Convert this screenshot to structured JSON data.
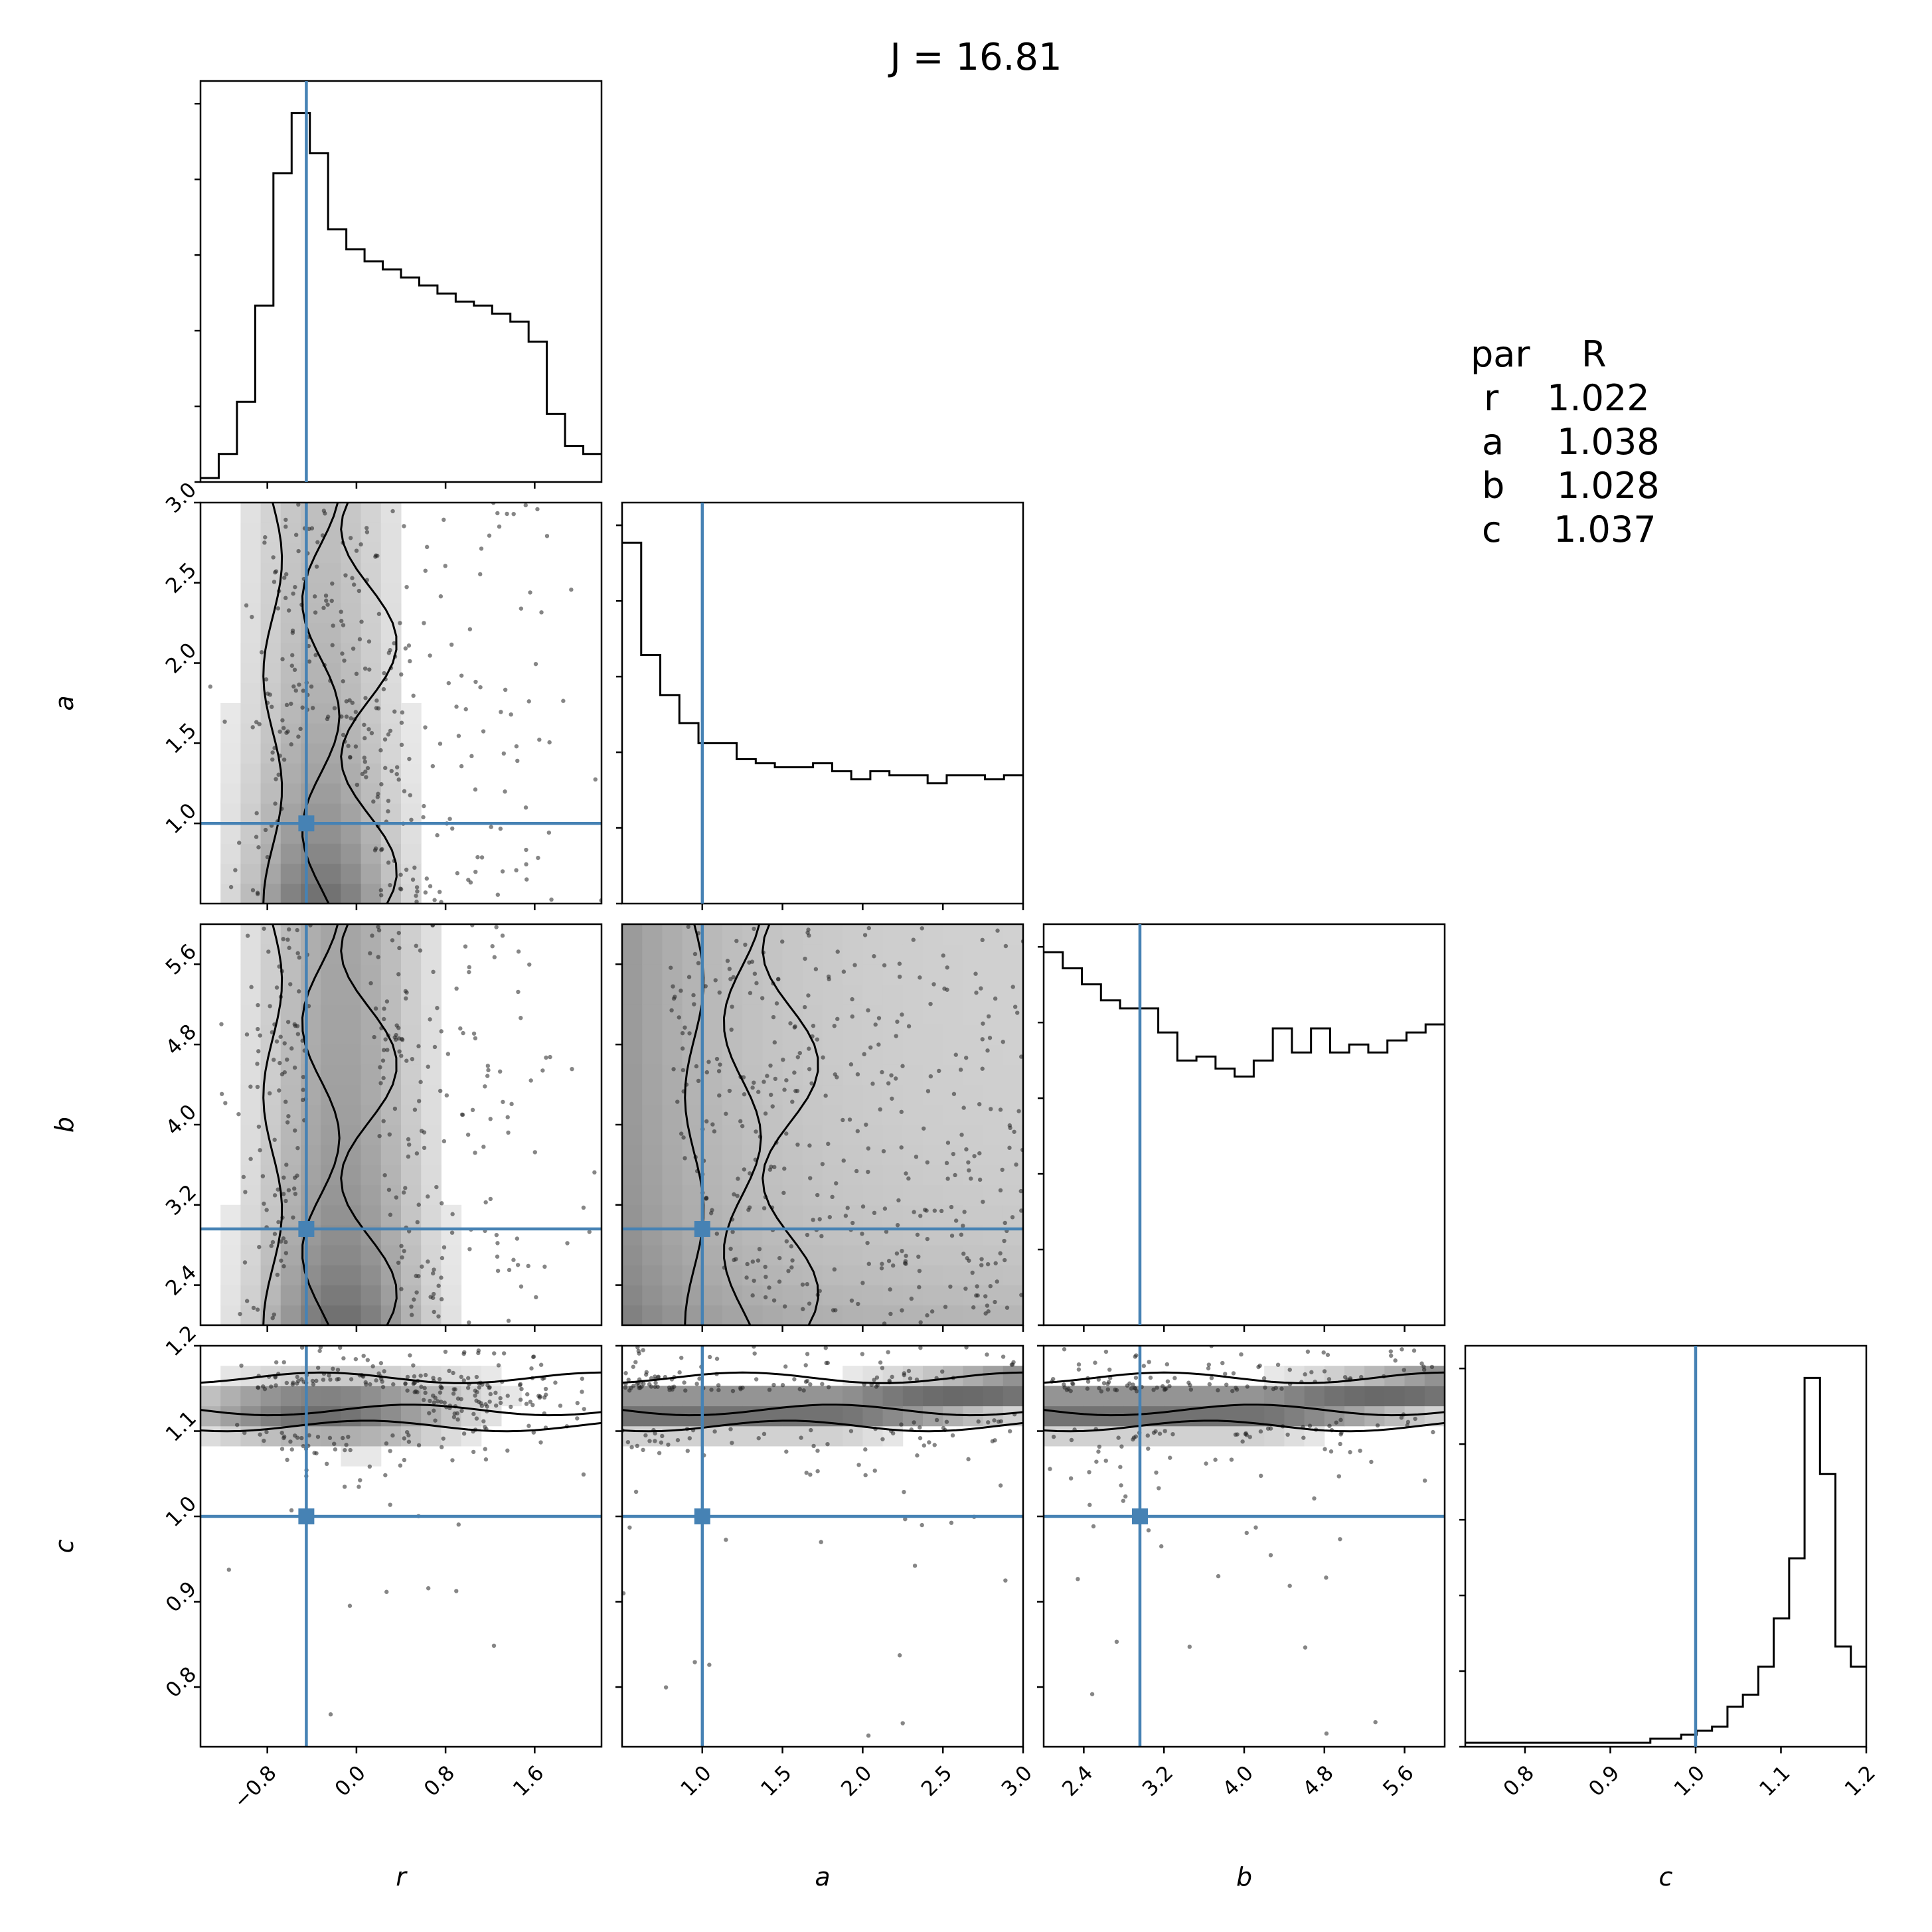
{
  "chart_data": {
    "type": "corner",
    "title": "J = 16.81",
    "parameters": [
      {
        "name": "r",
        "label": "r",
        "range": [
          -1.4,
          2.2
        ],
        "truth": -0.45,
        "ticks": [
          -0.8,
          0.0,
          0.8,
          1.6
        ],
        "tick_labels": [
          "−0.8",
          "0.0",
          "0.8",
          "1.6"
        ]
      },
      {
        "name": "a",
        "label": "a",
        "range": [
          0.5,
          3.0
        ],
        "truth": 1.0,
        "ticks": [
          1.0,
          1.5,
          2.0,
          2.5,
          3.0
        ],
        "tick_labels": [
          "1.0",
          "1.5",
          "2.0",
          "2.5",
          "3.0"
        ]
      },
      {
        "name": "b",
        "label": "b",
        "range": [
          2.0,
          6.0
        ],
        "truth": 2.96,
        "ticks": [
          2.4,
          3.2,
          4.0,
          4.8,
          5.6
        ],
        "tick_labels": [
          "2.4",
          "3.2",
          "4.0",
          "4.8",
          "5.6"
        ]
      },
      {
        "name": "c",
        "label": "c",
        "range": [
          0.73,
          1.2
        ],
        "truth": 1.0,
        "ticks": [
          0.8,
          0.9,
          1.0,
          1.1,
          1.2
        ],
        "tick_labels": [
          "0.8",
          "0.9",
          "1.0",
          "1.1",
          "1.2"
        ]
      }
    ],
    "histograms": {
      "r": [
        0.01,
        0.07,
        0.2,
        0.44,
        0.77,
        0.92,
        0.82,
        0.63,
        0.58,
        0.55,
        0.53,
        0.51,
        0.49,
        0.47,
        0.45,
        0.44,
        0.42,
        0.4,
        0.35,
        0.17,
        0.09,
        0.07
      ],
      "a": [
        0.9,
        0.62,
        0.52,
        0.45,
        0.4,
        0.4,
        0.36,
        0.35,
        0.34,
        0.34,
        0.35,
        0.33,
        0.31,
        0.33,
        0.32,
        0.32,
        0.3,
        0.32,
        0.32,
        0.31,
        0.32
      ],
      "b": [
        0.93,
        0.89,
        0.85,
        0.81,
        0.79,
        0.79,
        0.73,
        0.66,
        0.67,
        0.64,
        0.62,
        0.66,
        0.74,
        0.68,
        0.74,
        0.68,
        0.7,
        0.68,
        0.71,
        0.73,
        0.75
      ],
      "c": [
        0.01,
        0.01,
        0.01,
        0.01,
        0.01,
        0.01,
        0.01,
        0.01,
        0.01,
        0.01,
        0.01,
        0.01,
        0.02,
        0.02,
        0.03,
        0.04,
        0.05,
        0.1,
        0.13,
        0.2,
        0.32,
        0.47,
        0.92,
        0.68,
        0.25,
        0.2
      ]
    },
    "stats_table": {
      "header": [
        "par",
        "R"
      ],
      "rows": [
        [
          "r",
          "1.022"
        ],
        [
          "a",
          "1.038"
        ],
        [
          "b",
          "1.028"
        ],
        [
          "c",
          "1.037"
        ]
      ]
    },
    "colors": {
      "truth": "#4682b4",
      "line": "#000000"
    }
  }
}
